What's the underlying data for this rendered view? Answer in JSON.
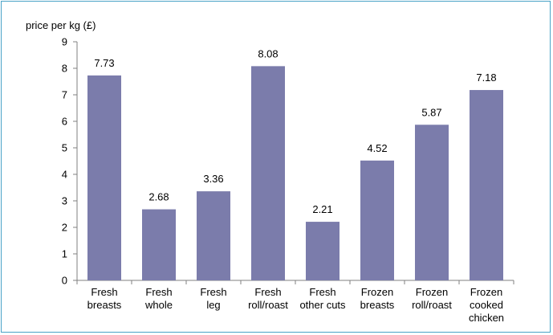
{
  "chart_data": {
    "type": "bar",
    "ylabel": "price per kg (£)",
    "xlabel": "",
    "title": "",
    "ylim": [
      0,
      9
    ],
    "yticks": [
      "0",
      "1",
      "2",
      "3",
      "4",
      "5",
      "6",
      "7",
      "8",
      "9"
    ],
    "categories": [
      [
        "Fresh",
        "breasts"
      ],
      [
        "Fresh",
        "whole"
      ],
      [
        "Fresh",
        "leg"
      ],
      [
        "Fresh",
        "roll/roast"
      ],
      [
        "Fresh",
        "other cuts"
      ],
      [
        "Frozen",
        "breasts"
      ],
      [
        "Frozen",
        "roll/roast"
      ],
      [
        "Frozen",
        "cooked",
        "chicken"
      ]
    ],
    "values": [
      7.73,
      2.68,
      3.36,
      8.08,
      2.21,
      4.52,
      5.87,
      7.18
    ],
    "data_labels": [
      "7.73",
      "2.68",
      "3.36",
      "8.08",
      "2.21",
      "4.52",
      "5.87",
      "7.18"
    ],
    "grid": false,
    "legend": "none",
    "bar_color": "#7b7cab",
    "frame_color": "#4aa3c7"
  }
}
